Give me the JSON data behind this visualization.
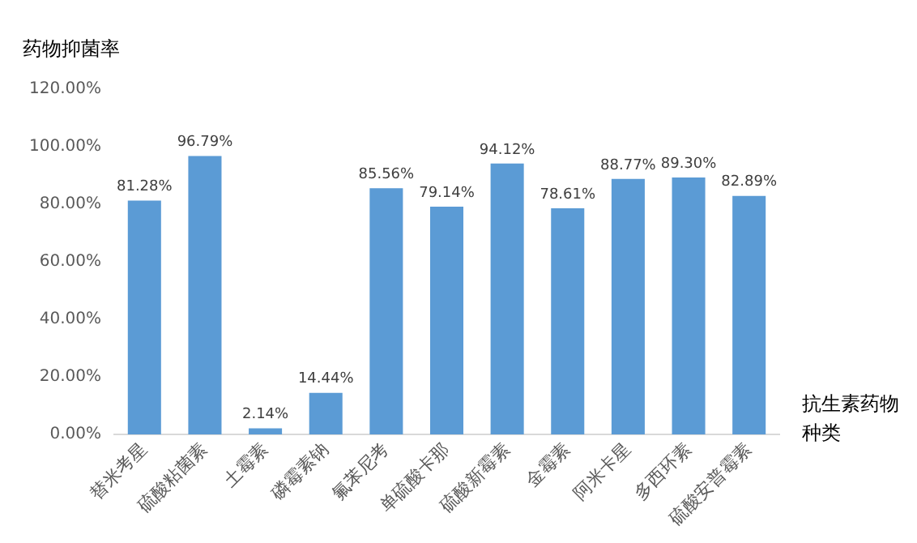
{
  "chart_data": {
    "type": "bar",
    "ylabel": "药物抑菌率",
    "xlabel": "抗生素药物种类",
    "categories": [
      "替米考星",
      "硫酸粘菌素",
      "土霉素",
      "磷霉素钠",
      "氟苯尼考",
      "单硫酸卡那",
      "硫酸新霉素",
      "金霉素",
      "阿米卡星",
      "多西环素",
      "硫酸安普霉素"
    ],
    "values": [
      81.28,
      96.79,
      2.14,
      14.44,
      85.56,
      79.14,
      94.12,
      78.61,
      88.77,
      89.3,
      82.89
    ],
    "value_labels": [
      "81.28%",
      "96.79%",
      "2.14%",
      "14.44%",
      "85.56%",
      "79.14%",
      "94.12%",
      "78.61%",
      "88.77%",
      "89.30%",
      "82.89%"
    ],
    "color": "#5b9bd5",
    "ylim": [
      0,
      120
    ],
    "yticks": [
      {
        "value": 0,
        "label": "0.00%"
      },
      {
        "value": 20,
        "label": "20.00%"
      },
      {
        "value": 40,
        "label": "40.00%"
      },
      {
        "value": 60,
        "label": "60.00%"
      },
      {
        "value": 80,
        "label": "80.00%"
      },
      {
        "value": 100,
        "label": "100.00%"
      },
      {
        "value": 120,
        "label": "120.00%"
      }
    ],
    "grid": false,
    "legend": false
  }
}
